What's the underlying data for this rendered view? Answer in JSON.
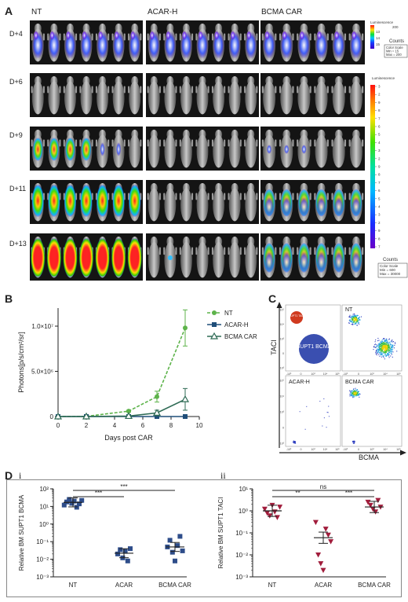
{
  "panels": {
    "A": "A",
    "B": "B",
    "C": "C",
    "D": "D",
    "D_i": "i",
    "D_ii": "ii"
  },
  "panelA": {
    "groups": [
      "NT",
      "ACAR-H",
      "BCMA CAR"
    ],
    "days": [
      "D+4",
      "D+6",
      "D+9",
      "D+11",
      "D+13"
    ],
    "scale_top": {
      "title": "Luminescence",
      "max_tick": "200",
      "ticks": [
        "13",
        "14",
        "15"
      ],
      "counts_label": "Counts",
      "color_scale": "Color Scale",
      "min": "Min = 15",
      "max": "Max = 200"
    },
    "scale_bottom": {
      "title": "Luminescence",
      "ticks": [
        "3",
        "2",
        "9",
        "8",
        "7",
        "6",
        "5",
        "4",
        "3",
        "2",
        "9",
        "8",
        "7",
        "6",
        "5",
        "4",
        "3",
        "2",
        "9",
        "8",
        "7"
      ],
      "counts_label": "Counts",
      "color_scale": "Color Scale",
      "min": "Min = 600",
      "max": "Max = 30000"
    }
  },
  "chart_data": [
    {
      "type": "line",
      "panel": "B",
      "xlabel": "Days post CAR",
      "ylabel": "Photons[p/s/cm²/sr]",
      "xlim": [
        0,
        10
      ],
      "ylim": [
        0,
        12000000
      ],
      "xticks": [
        "0",
        "2",
        "4",
        "6",
        "8",
        "10"
      ],
      "yticks": [
        "0",
        "5.0×10⁶",
        "1.0×10⁷"
      ],
      "legend_position": "right",
      "x": [
        0,
        2,
        5,
        7,
        9
      ],
      "series": [
        {
          "name": "NT",
          "values": [
            0,
            20000,
            600000,
            2200000,
            9800000
          ],
          "err": [
            0,
            10000,
            100000,
            600000,
            2000000
          ],
          "color": "#5db34a",
          "style": "dashed",
          "marker": "circle"
        },
        {
          "name": "ACAR-H",
          "values": [
            0,
            0,
            0,
            0,
            0
          ],
          "err": [
            0,
            0,
            0,
            0,
            0
          ],
          "color": "#1f4e79",
          "style": "solid",
          "marker": "square"
        },
        {
          "name": "BCMA CAR",
          "values": [
            0,
            0,
            50000,
            400000,
            1900000
          ],
          "err": [
            0,
            0,
            20000,
            300000,
            1200000
          ],
          "color": "#2f6b55",
          "style": "solid",
          "marker": "triangle"
        }
      ]
    },
    {
      "type": "scatter",
      "panel": "D i",
      "ylabel": "Relative BM SUPT1 BCMA",
      "yscale": "log",
      "ylim": [
        0.001,
        100
      ],
      "yticks": [
        "10²",
        "10¹",
        "10⁰",
        "10⁻¹",
        "10⁻²",
        "10⁻³"
      ],
      "categories": [
        "NT",
        "ACAR",
        "BCMA CAR"
      ],
      "marker_color": "#2e4d8a",
      "points": [
        [
          12,
          18,
          25,
          15,
          20,
          9,
          14,
          22
        ],
        [
          0.02,
          0.035,
          0.012,
          0.028,
          0.008,
          0.04
        ],
        [
          0.05,
          0.12,
          0.025,
          0.008,
          0.06,
          0.2,
          0.03
        ]
      ],
      "means": [
        17,
        0.022,
        0.05
      ],
      "significance": [
        {
          "from": "NT",
          "to": "ACAR",
          "label": "***"
        },
        {
          "from": "NT",
          "to": "BCMA CAR",
          "label": "***"
        }
      ]
    },
    {
      "type": "scatter",
      "panel": "D ii",
      "ylabel": "Relative BM SUPT1 TACI",
      "yscale": "log",
      "ylim": [
        0.001,
        10
      ],
      "yticks": [
        "10¹",
        "10⁰",
        "10⁻¹",
        "10⁻²",
        "10⁻³"
      ],
      "categories": [
        "NT",
        "ACAR",
        "BCMA CAR"
      ],
      "marker_color": "#a11d3c",
      "points": [
        [
          1.2,
          0.8,
          0.6,
          1.8,
          0.9,
          0.5,
          1.5
        ],
        [
          0.3,
          0.01,
          0.004,
          0.002,
          0.15,
          0.08,
          0.04
        ],
        [
          2.5,
          1.8,
          1.2,
          0.9,
          3.0,
          1.5
        ]
      ],
      "means": [
        1.0,
        0.06,
        1.5
      ],
      "significance": [
        {
          "from": "NT",
          "to": "ACAR",
          "label": "**"
        },
        {
          "from": "ACAR",
          "to": "BCMA CAR",
          "label": "***"
        },
        {
          "from": "NT",
          "to": "BCMA CAR",
          "label": "ns"
        }
      ]
    }
  ],
  "panelC": {
    "ylabel": "TACI",
    "xlabel": "BCMA",
    "plots": [
      "NT",
      "ACAR-H",
      "BCMA CAR"
    ],
    "schematic_labels": [
      "SUPT1 TACI",
      "SUPT1 BCMA"
    ],
    "ticks_y": [
      "10⁵",
      "10⁴",
      "10³",
      "0",
      "-10³"
    ],
    "ticks_x": [
      "-10³",
      "0",
      "10³",
      "10⁴",
      "10⁵"
    ]
  }
}
